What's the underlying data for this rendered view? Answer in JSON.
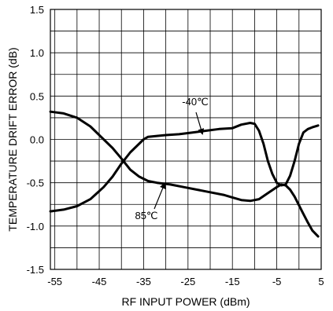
{
  "chart_data": {
    "type": "line",
    "xlabel": "RF INPUT POWER (dBm)",
    "ylabel": "TEMPERATURE DRIFT ERROR (dB)",
    "xlim": [
      -56,
      5
    ],
    "ylim": [
      -1.5,
      1.5
    ],
    "x_ticks": [
      -55,
      -45,
      -35,
      -25,
      -15,
      -5,
      5
    ],
    "x_tick_labels": [
      "-55",
      "-45",
      "-35",
      "-25",
      "-15",
      "-5",
      "5"
    ],
    "y_ticks": [
      1.5,
      1.0,
      0.5,
      0.0,
      -0.5,
      -1.0,
      -1.5
    ],
    "y_tick_labels": [
      "1.5",
      "1.0",
      "0.5",
      "0.0",
      "-0.5",
      "-1.0",
      "-1.5"
    ],
    "grid": true,
    "series": [
      {
        "name": "-40℃",
        "color": "#000000",
        "points": [
          [
            -56,
            -0.83
          ],
          [
            -53,
            -0.81
          ],
          [
            -50,
            -0.77
          ],
          [
            -47,
            -0.69
          ],
          [
            -44,
            -0.55
          ],
          [
            -42,
            -0.43
          ],
          [
            -40,
            -0.28
          ],
          [
            -38,
            -0.15
          ],
          [
            -36,
            -0.05
          ],
          [
            -35,
            0.0
          ],
          [
            -34,
            0.03
          ],
          [
            -32,
            0.04
          ],
          [
            -30,
            0.05
          ],
          [
            -27,
            0.06
          ],
          [
            -24,
            0.08
          ],
          [
            -21,
            0.1
          ],
          [
            -18,
            0.12
          ],
          [
            -15,
            0.13
          ],
          [
            -13,
            0.17
          ],
          [
            -11,
            0.19
          ],
          [
            -10,
            0.18
          ],
          [
            -9,
            0.1
          ],
          [
            -8,
            -0.05
          ],
          [
            -7,
            -0.25
          ],
          [
            -6,
            -0.4
          ],
          [
            -5,
            -0.5
          ],
          [
            -4,
            -0.53
          ],
          [
            -3,
            -0.52
          ],
          [
            -2,
            -0.42
          ],
          [
            -1,
            -0.25
          ],
          [
            0,
            -0.05
          ],
          [
            1,
            0.08
          ],
          [
            2,
            0.12
          ],
          [
            3,
            0.14
          ],
          [
            4.3,
            0.16
          ]
        ]
      },
      {
        "name": "85℃",
        "color": "#000000",
        "points": [
          [
            -56,
            0.32
          ],
          [
            -53,
            0.3
          ],
          [
            -50,
            0.25
          ],
          [
            -47,
            0.15
          ],
          [
            -44,
            0.0
          ],
          [
            -42,
            -0.1
          ],
          [
            -40,
            -0.22
          ],
          [
            -38,
            -0.35
          ],
          [
            -36,
            -0.43
          ],
          [
            -34,
            -0.48
          ],
          [
            -32,
            -0.5
          ],
          [
            -29,
            -0.52
          ],
          [
            -26,
            -0.55
          ],
          [
            -23,
            -0.58
          ],
          [
            -20,
            -0.61
          ],
          [
            -17,
            -0.64
          ],
          [
            -15,
            -0.67
          ],
          [
            -13,
            -0.7
          ],
          [
            -11,
            -0.71
          ],
          [
            -9,
            -0.69
          ],
          [
            -7,
            -0.62
          ],
          [
            -5,
            -0.55
          ],
          [
            -4,
            -0.52
          ],
          [
            -3,
            -0.53
          ],
          [
            -2,
            -0.58
          ],
          [
            -1,
            -0.66
          ],
          [
            0,
            -0.76
          ],
          [
            1,
            -0.86
          ],
          [
            2,
            -0.96
          ],
          [
            3,
            -1.05
          ],
          [
            4.3,
            -1.12
          ]
        ]
      }
    ],
    "annotations": [
      {
        "text": "-40℃",
        "series": "-40℃"
      },
      {
        "text": "85℃",
        "series": "85℃"
      }
    ]
  }
}
